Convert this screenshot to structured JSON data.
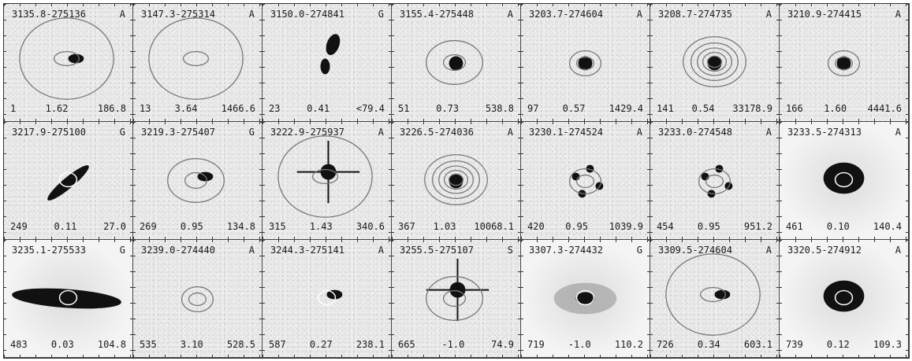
{
  "panels": [
    {
      "id": "3135.8-275136",
      "cls": "A",
      "n": "1",
      "z": "1.62",
      "f": "186.8",
      "gal": "blob",
      "contour": "big",
      "smooth": false
    },
    {
      "id": "3147.3-275314",
      "cls": "A",
      "n": "13",
      "z": "3.64",
      "f": "1466.6",
      "gal": "none",
      "contour": "big",
      "smooth": false
    },
    {
      "id": "3150.0-274841",
      "cls": "G",
      "n": "23",
      "z": "0.41",
      "f": "<79.4",
      "gal": "pair",
      "contour": "none",
      "smooth": false
    },
    {
      "id": "3155.4-275448",
      "cls": "A",
      "n": "51",
      "z": "0.73",
      "f": "538.8",
      "gal": "core",
      "contour": "medium",
      "smooth": false
    },
    {
      "id": "3203.7-274604",
      "cls": "A",
      "n": "97",
      "z": "0.57",
      "f": "1429.4",
      "gal": "core",
      "contour": "small",
      "smooth": false
    },
    {
      "id": "3208.7-274735",
      "cls": "A",
      "n": "141",
      "z": "0.54",
      "f": "33178.9",
      "gal": "core",
      "contour": "many",
      "smooth": false
    },
    {
      "id": "3210.9-274415",
      "cls": "A",
      "n": "166",
      "z": "1.60",
      "f": "4441.6",
      "gal": "core",
      "contour": "small",
      "smooth": false
    },
    {
      "id": "3217.9-275100",
      "cls": "G",
      "n": "249",
      "z": "0.11",
      "f": "27.0",
      "gal": "edge",
      "contour": "tiny",
      "smooth": false
    },
    {
      "id": "3219.3-275407",
      "cls": "G",
      "n": "269",
      "z": "0.95",
      "f": "134.8",
      "gal": "blob",
      "contour": "medium",
      "smooth": false
    },
    {
      "id": "3222.9-275937",
      "cls": "A",
      "n": "315",
      "z": "1.43",
      "f": "340.6",
      "gal": "star",
      "contour": "big",
      "smooth": false
    },
    {
      "id": "3226.5-274036",
      "cls": "A",
      "n": "367",
      "z": "1.03",
      "f": "10068.1",
      "gal": "core",
      "contour": "many",
      "smooth": false
    },
    {
      "id": "3230.1-274524",
      "cls": "A",
      "n": "420",
      "z": "0.95",
      "f": "1039.9",
      "gal": "group",
      "contour": "small",
      "smooth": false
    },
    {
      "id": "3233.0-274548",
      "cls": "A",
      "n": "454",
      "z": "0.95",
      "f": "951.2",
      "gal": "group",
      "contour": "small",
      "smooth": false
    },
    {
      "id": "3233.5-274313",
      "cls": "A",
      "n": "461",
      "z": "0.10",
      "f": "140.4",
      "gal": "elliptical",
      "contour": "tiny",
      "smooth": true
    },
    {
      "id": "3235.1-275533",
      "cls": "G",
      "n": "483",
      "z": "0.03",
      "f": "104.8",
      "gal": "edge-big",
      "contour": "tiny",
      "smooth": true
    },
    {
      "id": "3239.0-274440",
      "cls": "A",
      "n": "535",
      "z": "3.10",
      "f": "528.5",
      "gal": "none",
      "contour": "small",
      "smooth": false
    },
    {
      "id": "3244.3-275141",
      "cls": "A",
      "n": "587",
      "z": "0.27",
      "f": "238.1",
      "gal": "blob",
      "contour": "tiny",
      "smooth": false
    },
    {
      "id": "3255.5-275107",
      "cls": "S",
      "n": "665",
      "z": "-1.0",
      "f": "74.9",
      "gal": "star",
      "contour": "medium",
      "smooth": false
    },
    {
      "id": "3307.3-274432",
      "cls": "G",
      "n": "719",
      "z": "-1.0",
      "f": "110.2",
      "gal": "spiral",
      "contour": "tiny",
      "smooth": true
    },
    {
      "id": "3309.5-274604",
      "cls": "A",
      "n": "726",
      "z": "0.34",
      "f": "603.1",
      "gal": "blob",
      "contour": "big",
      "smooth": false
    },
    {
      "id": "3320.5-274912",
      "cls": "A",
      "n": "739",
      "z": "0.12",
      "f": "109.3",
      "gal": "elliptical",
      "contour": "tiny",
      "smooth": true
    }
  ]
}
